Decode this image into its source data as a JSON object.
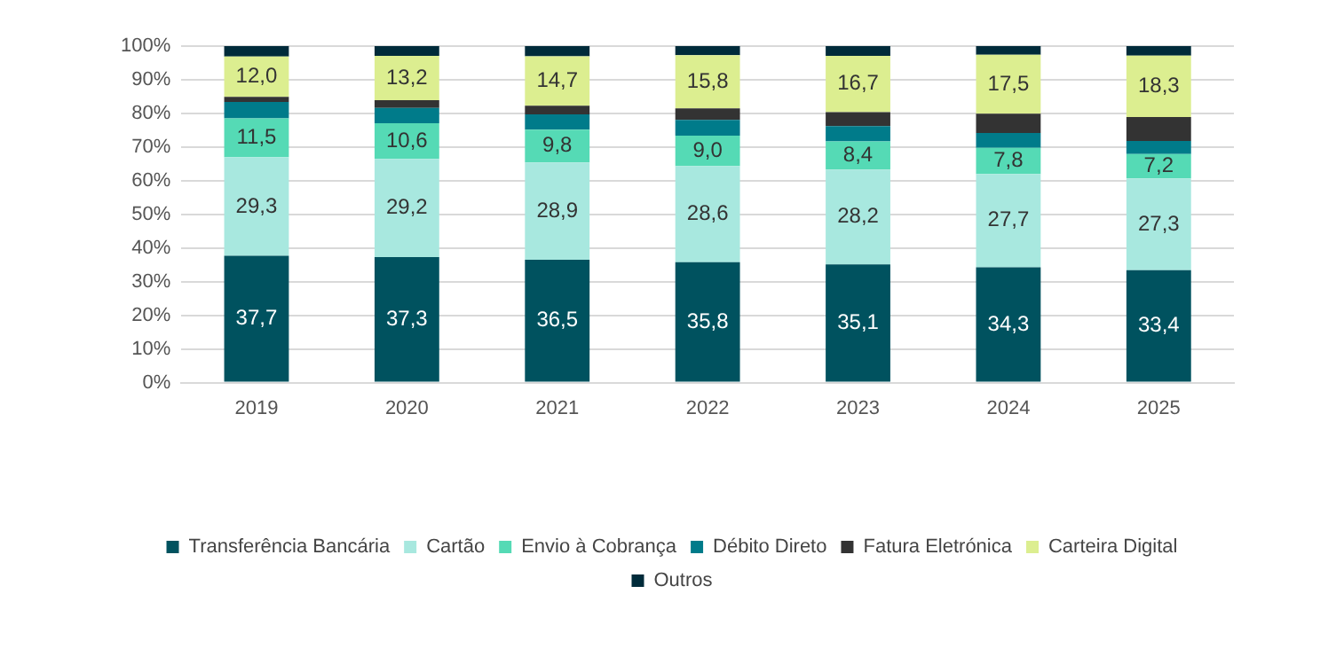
{
  "chart_data": {
    "type": "bar",
    "stacked": true,
    "categories": [
      "2019",
      "2020",
      "2021",
      "2022",
      "2023",
      "2024",
      "2025"
    ],
    "series": [
      {
        "name": "Transferência Bancária",
        "color": "#00525f",
        "values": [
          37.7,
          37.3,
          36.5,
          35.8,
          35.1,
          34.3,
          33.4
        ],
        "value_labels": [
          "37,7",
          "37,3",
          "36,5",
          "35,8",
          "35,1",
          "34,3",
          "33,4"
        ]
      },
      {
        "name": "Cartão",
        "color": "#a8e8df",
        "values": [
          29.3,
          29.2,
          28.9,
          28.6,
          28.2,
          27.7,
          27.3
        ],
        "value_labels": [
          "29,3",
          "29,2",
          "28,9",
          "28,6",
          "28,2",
          "27,7",
          "27,3"
        ]
      },
      {
        "name": "Envio à Cobrança",
        "color": "#55dab5",
        "values": [
          11.5,
          10.6,
          9.8,
          9.0,
          8.4,
          7.8,
          7.2
        ],
        "value_labels": [
          "11,5",
          "10,6",
          "9,8",
          "9,0",
          "8,4",
          "7,8",
          "7,2"
        ]
      },
      {
        "name": "Débito Direto",
        "color": "#007b8a",
        "values": [
          4.9,
          4.5,
          4.5,
          4.7,
          4.5,
          4.4,
          3.9
        ]
      },
      {
        "name": "Fatura Eletrónica",
        "color": "#333333",
        "values": [
          1.5,
          2.3,
          2.6,
          3.4,
          4.2,
          5.7,
          7.1
        ]
      },
      {
        "name": "Carteira Digital",
        "color": "#dcee90",
        "values": [
          12.0,
          13.2,
          14.7,
          15.8,
          16.7,
          17.5,
          18.3
        ],
        "value_labels": [
          "12,0",
          "13,2",
          "14,7",
          "15,8",
          "16,7",
          "17,5",
          "18,3"
        ]
      },
      {
        "name": "Outros",
        "color": "#002b3a",
        "values": [
          3.1,
          2.9,
          3.0,
          2.7,
          2.9,
          2.6,
          2.8
        ]
      }
    ],
    "ylim": [
      0,
      100
    ],
    "yticks": [
      {
        "value": 0,
        "label": "0%"
      },
      {
        "value": 10,
        "label": "10%"
      },
      {
        "value": 20,
        "label": "20%"
      },
      {
        "value": 30,
        "label": "30%"
      },
      {
        "value": 40,
        "label": "40%"
      },
      {
        "value": 50,
        "label": "50%"
      },
      {
        "value": 60,
        "label": "60%"
      },
      {
        "value": 70,
        "label": "70%"
      },
      {
        "value": 80,
        "label": "80%"
      },
      {
        "value": 90,
        "label": "90%"
      },
      {
        "value": 100,
        "label": "100%"
      }
    ],
    "grid": "y",
    "legend": "bottom"
  }
}
